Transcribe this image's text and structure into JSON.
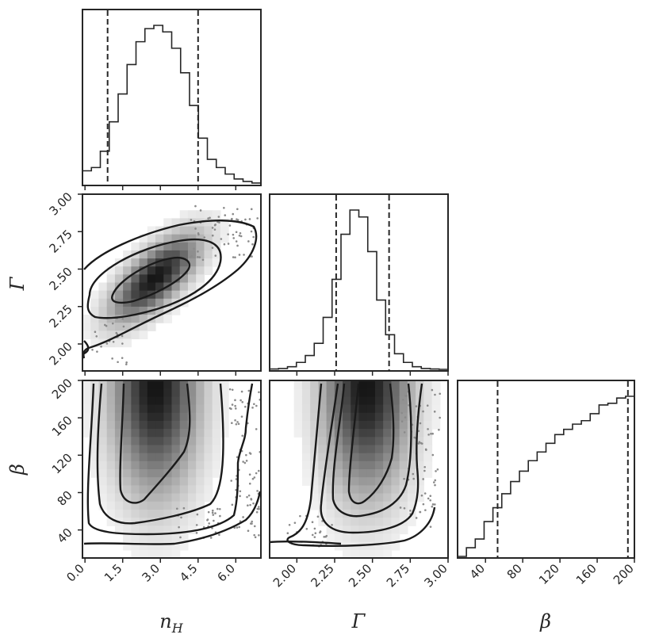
{
  "chart_data": {
    "type": "corner",
    "parameters": [
      {
        "key": "nH",
        "label_base": "n",
        "label_sub": "H",
        "range": [
          -0.1,
          7.0
        ],
        "ticks": [
          "0.0",
          "1.5",
          "3.0",
          "4.5",
          "6.0"
        ],
        "tick_values": [
          0.0,
          1.5,
          3.0,
          4.5,
          6.0
        ]
      },
      {
        "key": "Gamma",
        "label": "Γ",
        "range": [
          1.82,
          3.0
        ],
        "ticks": [
          "2.00",
          "2.25",
          "2.50",
          "2.75",
          "3.00"
        ],
        "tick_values": [
          2.0,
          2.25,
          2.5,
          2.75,
          3.0
        ]
      },
      {
        "key": "beta",
        "label": "β",
        "range": [
          10,
          200
        ],
        "ticks": [
          "40",
          "80",
          "120",
          "160",
          "200"
        ],
        "tick_values": [
          40,
          80,
          120,
          160,
          200
        ]
      }
    ],
    "histograms": [
      {
        "param": "nH",
        "bins": [
          -0.1,
          0.255,
          0.61,
          0.965,
          1.32,
          1.675,
          2.03,
          2.385,
          2.74,
          3.095,
          3.45,
          3.805,
          4.16,
          4.515,
          4.87,
          5.225,
          5.58,
          5.935,
          6.29,
          6.645,
          7.0
        ],
        "counts": [
          0.08,
          0.1,
          0.2,
          0.38,
          0.55,
          0.73,
          0.87,
          0.95,
          0.97,
          0.93,
          0.83,
          0.68,
          0.48,
          0.28,
          0.15,
          0.1,
          0.06,
          0.03,
          0.015,
          0.005
        ],
        "quantiles": [
          0.9,
          4.5
        ]
      },
      {
        "param": "Gamma",
        "bins": [
          1.82,
          1.879,
          1.938,
          1.997,
          2.056,
          2.115,
          2.174,
          2.233,
          2.292,
          2.351,
          2.41,
          2.469,
          2.528,
          2.587,
          2.646,
          2.705,
          2.764,
          2.823,
          2.882,
          2.941,
          3.0
        ],
        "counts": [
          0.002,
          0.005,
          0.015,
          0.04,
          0.08,
          0.15,
          0.3,
          0.52,
          0.78,
          0.92,
          0.88,
          0.68,
          0.4,
          0.2,
          0.09,
          0.04,
          0.015,
          0.005,
          0.002,
          0.0
        ],
        "quantiles": [
          2.26,
          2.61
        ]
      },
      {
        "param": "beta",
        "bins": [
          10,
          19.5,
          29,
          38.5,
          48,
          57.5,
          67,
          76.5,
          86,
          95.5,
          105,
          114.5,
          124,
          133.5,
          143,
          152.5,
          162,
          171.5,
          181,
          190.5,
          200
        ],
        "counts": [
          0.0,
          0.05,
          0.1,
          0.2,
          0.28,
          0.36,
          0.43,
          0.49,
          0.55,
          0.6,
          0.65,
          0.7,
          0.73,
          0.76,
          0.78,
          0.82,
          0.87,
          0.88,
          0.91,
          0.92
        ],
        "quantiles": [
          53,
          193
        ]
      }
    ],
    "joint": [
      {
        "x": "nH",
        "y": "Gamma",
        "center": [
          2.8,
          2.44
        ],
        "corr": 0.7
      },
      {
        "x": "nH",
        "y": "beta",
        "center": [
          2.8,
          195
        ],
        "corr": 0.0
      },
      {
        "x": "Gamma",
        "y": "beta",
        "center": [
          2.46,
          195
        ],
        "corr": 0.0
      }
    ],
    "grid": false,
    "contour_levels": 3
  }
}
